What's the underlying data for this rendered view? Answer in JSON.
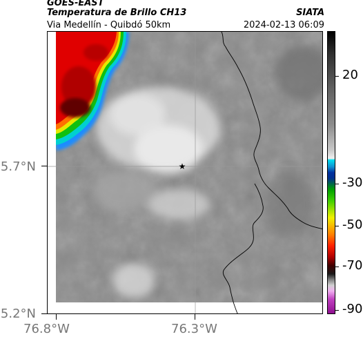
{
  "header": {
    "satellite": "GOES-EAST",
    "product": "Temperatura de Brillo CH13",
    "region": "Via Medellín - Quibdó 50km",
    "organization": "SIATA",
    "timestamp": "2024-02-13 06:09"
  },
  "map": {
    "latitude_labels": [
      "5.7°N",
      "5.2°N"
    ],
    "longitude_labels": [
      "76.8°W",
      "76.3°W"
    ],
    "marker": "location-star"
  },
  "colorbar": {
    "labels": [
      "20",
      "-30",
      "-50",
      "-70",
      "-90"
    ]
  }
}
